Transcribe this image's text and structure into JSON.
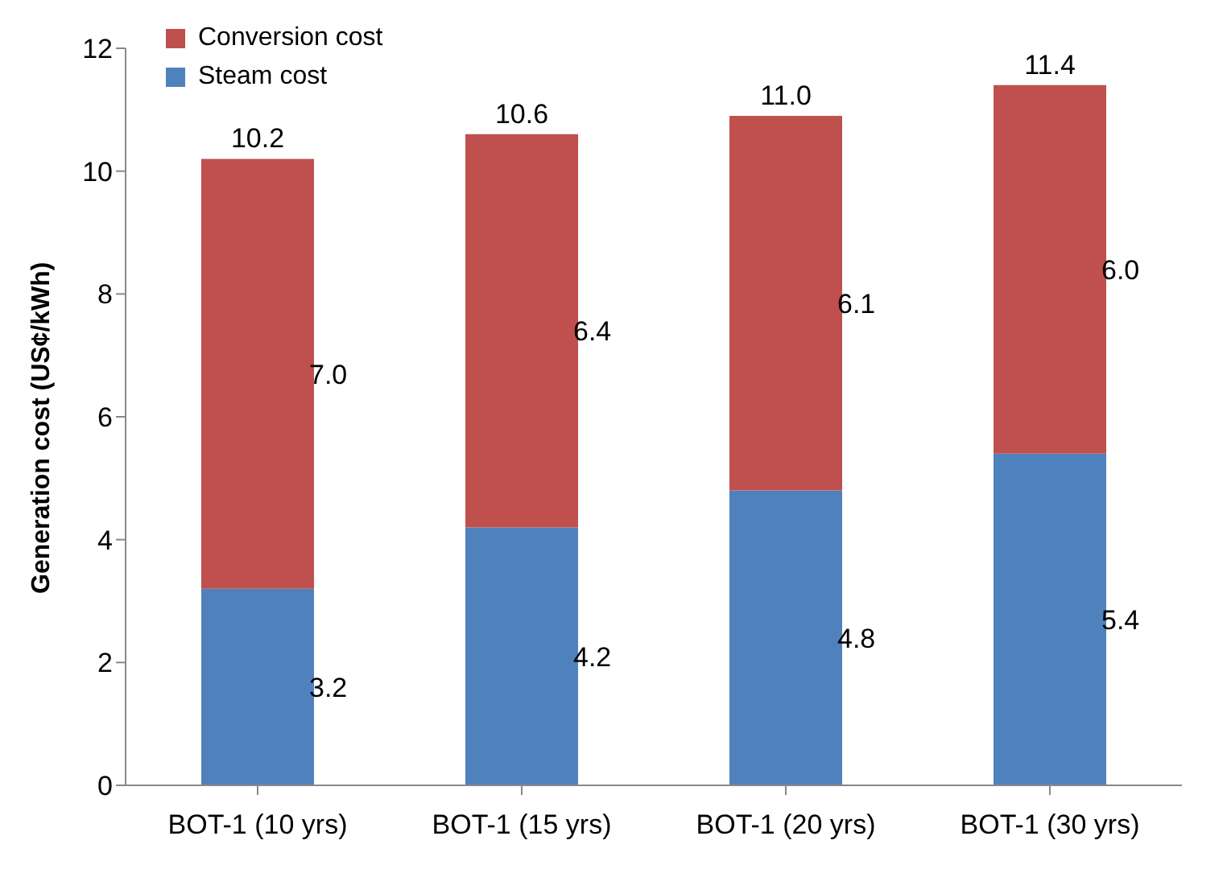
{
  "chart_data": {
    "type": "bar",
    "stacked": true,
    "ylabel": "Generation cost (US¢/kWh)",
    "categories": [
      "BOT-1 (10 yrs)",
      "BOT-1 (15 yrs)",
      "BOT-1 (20 yrs)",
      "BOT-1 (30 yrs)"
    ],
    "series": [
      {
        "name": "Steam cost",
        "color": "#4f81bd",
        "values": [
          3.2,
          4.2,
          4.8,
          5.4
        ],
        "value_labels": [
          "3.2",
          "4.2",
          "4.8",
          "5.4"
        ]
      },
      {
        "name": "Conversion cost",
        "color": "#c0504d",
        "values": [
          7.0,
          6.4,
          6.1,
          6.0
        ],
        "value_labels": [
          "7.0",
          "6.4",
          "6.1",
          "6.0"
        ]
      }
    ],
    "totals": [
      "10.2",
      "10.6",
      "11.0",
      "11.4"
    ],
    "ylim": [
      0,
      12
    ],
    "yticks": [
      0,
      2,
      4,
      6,
      8,
      10,
      12
    ],
    "grid": false,
    "legend": "top left"
  }
}
